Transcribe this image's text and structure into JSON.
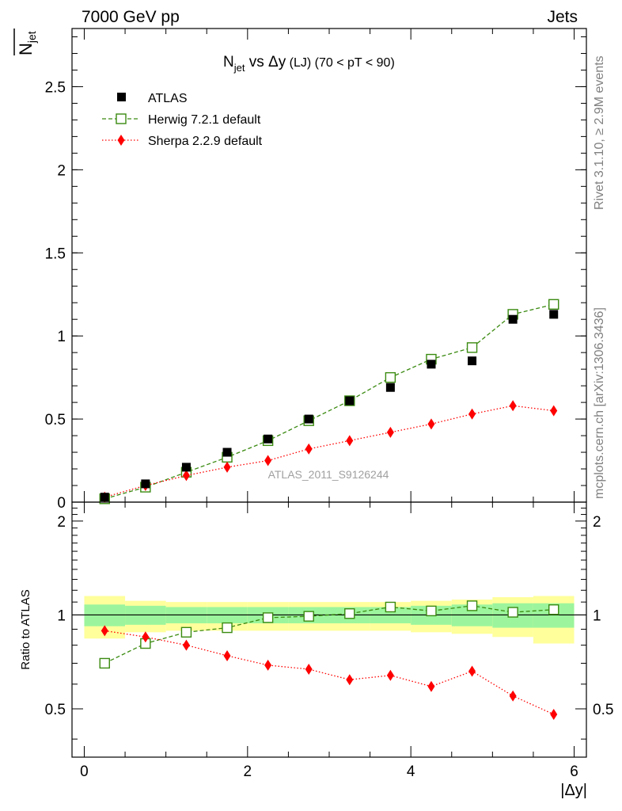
{
  "header": {
    "left": "7000 GeV pp",
    "right": "Jets"
  },
  "side_text": {
    "rivet": "Rivet 3.1.10, ≥ 2.9M events",
    "mcplots": "mcplots.cern.ch [arXiv:1306.3436]"
  },
  "watermark": "ATLAS_2011_S9126244",
  "colors": {
    "atlas": "#000000",
    "herwig": "#3a8a10",
    "sherpa": "#ff0000",
    "band_inner": "#9cf59c",
    "band_outer": "#ffff9c"
  },
  "chart_data": [
    {
      "type": "scatter",
      "title_parts": {
        "n": "N",
        "n_sub": "jet",
        "mid": " vs Δy",
        "tail": " (LJ) (70 < pT <  90)"
      },
      "ylabel_parts": {
        "n": "N",
        "sub": "jet"
      },
      "ylim": [
        0,
        2.85
      ],
      "xlim": [
        -0.15,
        6.15
      ],
      "yticks": [
        "0",
        "0.5",
        "1",
        "1.5",
        "2",
        "2.5"
      ],
      "ytick_values": [
        0,
        0.5,
        1,
        1.5,
        2,
        2.5
      ],
      "x": [
        0.25,
        0.75,
        1.25,
        1.75,
        2.25,
        2.75,
        3.25,
        3.75,
        4.25,
        4.75,
        5.25,
        5.75
      ],
      "series": [
        {
          "name": "ATLAS",
          "marker": "square-filled",
          "values": [
            0.03,
            0.11,
            0.21,
            0.3,
            0.38,
            0.5,
            0.61,
            0.69,
            0.83,
            0.85,
            1.1,
            1.13
          ]
        },
        {
          "name": "Herwig 7.2.1 default",
          "marker": "square-open",
          "line": "dashed",
          "values": [
            0.02,
            0.09,
            0.18,
            0.27,
            0.37,
            0.49,
            0.61,
            0.75,
            0.86,
            0.93,
            1.13,
            1.19
          ]
        },
        {
          "name": "Sherpa 2.2.9 default",
          "marker": "diamond",
          "line": "dotted",
          "values": [
            0.03,
            0.1,
            0.16,
            0.21,
            0.25,
            0.32,
            0.37,
            0.42,
            0.47,
            0.53,
            0.58,
            0.55
          ]
        }
      ],
      "legend": [
        "ATLAS",
        "Herwig 7.2.1 default",
        "Sherpa 2.2.9 default"
      ],
      "legend_position": "top-left"
    },
    {
      "type": "scatter",
      "ylabel": "Ratio to ATLAS",
      "xlabel": "|Δy|",
      "ylim": [
        0.35,
        2.3
      ],
      "xlim": [
        -0.15,
        6.15
      ],
      "xticks": [
        "0",
        "2",
        "4",
        "6"
      ],
      "xtick_values": [
        0,
        2,
        4,
        6
      ],
      "yticks": [
        "0.5",
        "1",
        "2"
      ],
      "ytick_values": [
        0.5,
        1,
        2
      ],
      "x": [
        0.25,
        0.75,
        1.25,
        1.75,
        2.25,
        2.75,
        3.25,
        3.75,
        4.25,
        4.75,
        5.25,
        5.75
      ],
      "bin_edges": [
        0,
        0.5,
        1,
        1.5,
        2,
        2.5,
        3,
        3.5,
        4,
        4.5,
        5,
        5.5,
        6
      ],
      "band_inner": [
        [
          0.92,
          1.08
        ],
        [
          0.93,
          1.07
        ],
        [
          0.94,
          1.06
        ],
        [
          0.94,
          1.06
        ],
        [
          0.94,
          1.06
        ],
        [
          0.94,
          1.06
        ],
        [
          0.94,
          1.06
        ],
        [
          0.94,
          1.06
        ],
        [
          0.93,
          1.07
        ],
        [
          0.92,
          1.08
        ],
        [
          0.91,
          1.09
        ],
        [
          0.91,
          1.09
        ]
      ],
      "band_outer": [
        [
          0.84,
          1.15
        ],
        [
          0.88,
          1.11
        ],
        [
          0.89,
          1.1
        ],
        [
          0.89,
          1.1
        ],
        [
          0.89,
          1.1
        ],
        [
          0.89,
          1.1
        ],
        [
          0.89,
          1.1
        ],
        [
          0.89,
          1.1
        ],
        [
          0.88,
          1.11
        ],
        [
          0.87,
          1.12
        ],
        [
          0.85,
          1.14
        ],
        [
          0.81,
          1.15
        ]
      ],
      "series": [
        {
          "name": "Herwig 7.2.1 default",
          "marker": "square-open",
          "line": "dashed",
          "values": [
            0.7,
            0.81,
            0.88,
            0.91,
            0.98,
            0.99,
            1.01,
            1.06,
            1.03,
            1.07,
            1.02,
            1.04
          ]
        },
        {
          "name": "Sherpa 2.2.9 default",
          "marker": "diamond",
          "line": "dotted",
          "values": [
            0.89,
            0.85,
            0.8,
            0.74,
            0.69,
            0.67,
            0.62,
            0.64,
            0.59,
            0.66,
            0.55,
            0.48
          ]
        }
      ]
    }
  ]
}
